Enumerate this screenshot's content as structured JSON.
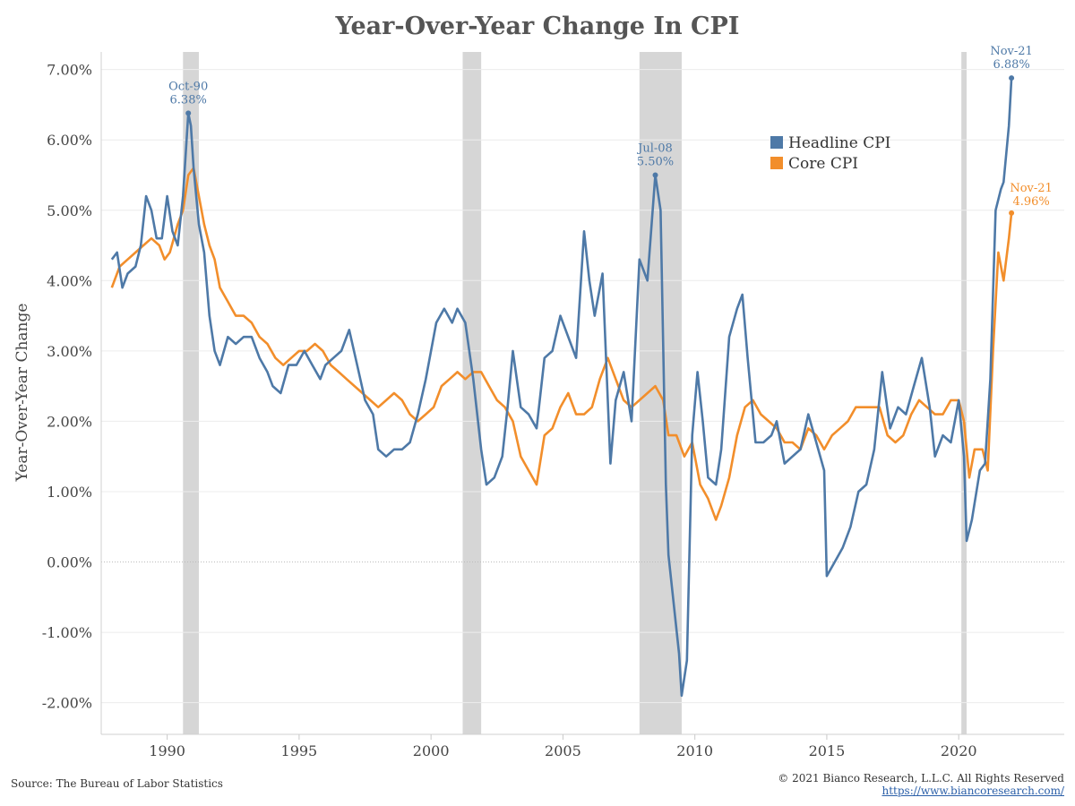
{
  "chart_data": {
    "type": "line",
    "title": "Year-Over-Year Change In CPI",
    "xlabel": "",
    "ylabel": "Year-Over-Year Change",
    "xlim": [
      1987.5,
      2024.0
    ],
    "ylim": [
      -2.45,
      7.25
    ],
    "x_ticks": [
      1990,
      1995,
      2000,
      2005,
      2010,
      2015,
      2020
    ],
    "y_ticks": [
      -2,
      -1,
      0,
      1,
      2,
      3,
      4,
      5,
      6,
      7
    ],
    "y_tick_labels": [
      "-2.00%",
      "-1.00%",
      "0.00%",
      "1.00%",
      "2.00%",
      "3.00%",
      "4.00%",
      "5.00%",
      "6.00%",
      "7.00%"
    ],
    "grid": "horizontal",
    "legend": {
      "position": "top-right",
      "entries": [
        "Headline CPI",
        "Core CPI"
      ]
    },
    "recessions": [
      [
        1990.6,
        1991.2
      ],
      [
        2001.2,
        2001.9
      ],
      [
        2007.9,
        2009.5
      ],
      [
        2020.1,
        2020.3
      ]
    ],
    "series": [
      {
        "name": "Headline CPI",
        "color": "#4e79a7",
        "points": [
          [
            1987.9,
            4.3
          ],
          [
            1988.1,
            4.4
          ],
          [
            1988.3,
            3.9
          ],
          [
            1988.5,
            4.1
          ],
          [
            1988.8,
            4.2
          ],
          [
            1989.0,
            4.5
          ],
          [
            1989.2,
            5.2
          ],
          [
            1989.4,
            5.0
          ],
          [
            1989.6,
            4.6
          ],
          [
            1989.8,
            4.6
          ],
          [
            1990.0,
            5.2
          ],
          [
            1990.2,
            4.7
          ],
          [
            1990.4,
            4.5
          ],
          [
            1990.6,
            5.2
          ],
          [
            1990.8,
            6.38
          ],
          [
            1990.9,
            6.2
          ],
          [
            1991.0,
            5.6
          ],
          [
            1991.2,
            4.8
          ],
          [
            1991.4,
            4.4
          ],
          [
            1991.6,
            3.5
          ],
          [
            1991.8,
            3.0
          ],
          [
            1992.0,
            2.8
          ],
          [
            1992.3,
            3.2
          ],
          [
            1992.6,
            3.1
          ],
          [
            1992.9,
            3.2
          ],
          [
            1993.2,
            3.2
          ],
          [
            1993.5,
            2.9
          ],
          [
            1993.8,
            2.7
          ],
          [
            1994.0,
            2.5
          ],
          [
            1994.3,
            2.4
          ],
          [
            1994.6,
            2.8
          ],
          [
            1994.9,
            2.8
          ],
          [
            1995.2,
            3.0
          ],
          [
            1995.5,
            2.8
          ],
          [
            1995.8,
            2.6
          ],
          [
            1996.0,
            2.8
          ],
          [
            1996.3,
            2.9
          ],
          [
            1996.6,
            3.0
          ],
          [
            1996.9,
            3.3
          ],
          [
            1997.2,
            2.8
          ],
          [
            1997.5,
            2.3
          ],
          [
            1997.8,
            2.1
          ],
          [
            1998.0,
            1.6
          ],
          [
            1998.3,
            1.5
          ],
          [
            1998.6,
            1.6
          ],
          [
            1998.9,
            1.6
          ],
          [
            1999.2,
            1.7
          ],
          [
            1999.5,
            2.1
          ],
          [
            1999.8,
            2.6
          ],
          [
            2000.2,
            3.4
          ],
          [
            2000.5,
            3.6
          ],
          [
            2000.8,
            3.4
          ],
          [
            2001.0,
            3.6
          ],
          [
            2001.3,
            3.4
          ],
          [
            2001.6,
            2.6
          ],
          [
            2001.9,
            1.6
          ],
          [
            2002.1,
            1.1
          ],
          [
            2002.4,
            1.2
          ],
          [
            2002.7,
            1.5
          ],
          [
            2002.9,
            2.2
          ],
          [
            2003.1,
            3.0
          ],
          [
            2003.4,
            2.2
          ],
          [
            2003.7,
            2.1
          ],
          [
            2004.0,
            1.9
          ],
          [
            2004.3,
            2.9
          ],
          [
            2004.6,
            3.0
          ],
          [
            2004.9,
            3.5
          ],
          [
            2005.2,
            3.2
          ],
          [
            2005.5,
            2.9
          ],
          [
            2005.8,
            4.7
          ],
          [
            2006.0,
            4.0
          ],
          [
            2006.2,
            3.5
          ],
          [
            2006.5,
            4.1
          ],
          [
            2006.8,
            1.4
          ],
          [
            2007.0,
            2.3
          ],
          [
            2007.3,
            2.7
          ],
          [
            2007.6,
            2.0
          ],
          [
            2007.9,
            4.3
          ],
          [
            2008.2,
            4.0
          ],
          [
            2008.5,
            5.5
          ],
          [
            2008.7,
            5.0
          ],
          [
            2008.9,
            1.1
          ],
          [
            2009.0,
            0.1
          ],
          [
            2009.2,
            -0.6
          ],
          [
            2009.4,
            -1.3
          ],
          [
            2009.5,
            -1.9
          ],
          [
            2009.7,
            -1.4
          ],
          [
            2009.9,
            1.8
          ],
          [
            2010.1,
            2.7
          ],
          [
            2010.3,
            2.0
          ],
          [
            2010.5,
            1.2
          ],
          [
            2010.8,
            1.1
          ],
          [
            2011.0,
            1.6
          ],
          [
            2011.3,
            3.2
          ],
          [
            2011.6,
            3.6
          ],
          [
            2011.8,
            3.8
          ],
          [
            2012.0,
            2.9
          ],
          [
            2012.3,
            1.7
          ],
          [
            2012.6,
            1.7
          ],
          [
            2012.9,
            1.8
          ],
          [
            2013.1,
            2.0
          ],
          [
            2013.4,
            1.4
          ],
          [
            2013.7,
            1.5
          ],
          [
            2014.0,
            1.6
          ],
          [
            2014.3,
            2.1
          ],
          [
            2014.6,
            1.7
          ],
          [
            2014.9,
            1.3
          ],
          [
            2015.0,
            -0.2
          ],
          [
            2015.3,
            0.0
          ],
          [
            2015.6,
            0.2
          ],
          [
            2015.9,
            0.5
          ],
          [
            2016.2,
            1.0
          ],
          [
            2016.5,
            1.1
          ],
          [
            2016.8,
            1.6
          ],
          [
            2017.1,
            2.7
          ],
          [
            2017.4,
            1.9
          ],
          [
            2017.7,
            2.2
          ],
          [
            2018.0,
            2.1
          ],
          [
            2018.3,
            2.5
          ],
          [
            2018.6,
            2.9
          ],
          [
            2018.9,
            2.2
          ],
          [
            2019.1,
            1.5
          ],
          [
            2019.4,
            1.8
          ],
          [
            2019.7,
            1.7
          ],
          [
            2020.0,
            2.3
          ],
          [
            2020.2,
            1.5
          ],
          [
            2020.3,
            0.3
          ],
          [
            2020.5,
            0.6
          ],
          [
            2020.8,
            1.3
          ],
          [
            2021.0,
            1.4
          ],
          [
            2021.2,
            2.6
          ],
          [
            2021.4,
            5.0
          ],
          [
            2021.6,
            5.3
          ],
          [
            2021.7,
            5.4
          ],
          [
            2021.9,
            6.2
          ],
          [
            2022.0,
            6.88
          ]
        ]
      },
      {
        "name": "Core CPI",
        "color": "#f28e2b",
        "points": [
          [
            1987.9,
            3.9
          ],
          [
            1988.2,
            4.2
          ],
          [
            1988.5,
            4.3
          ],
          [
            1988.8,
            4.4
          ],
          [
            1989.1,
            4.5
          ],
          [
            1989.4,
            4.6
          ],
          [
            1989.7,
            4.5
          ],
          [
            1989.9,
            4.3
          ],
          [
            1990.1,
            4.4
          ],
          [
            1990.4,
            4.8
          ],
          [
            1990.6,
            5.0
          ],
          [
            1990.8,
            5.5
          ],
          [
            1991.0,
            5.6
          ],
          [
            1991.2,
            5.2
          ],
          [
            1991.4,
            4.8
          ],
          [
            1991.6,
            4.5
          ],
          [
            1991.8,
            4.3
          ],
          [
            1992.0,
            3.9
          ],
          [
            1992.3,
            3.7
          ],
          [
            1992.6,
            3.5
          ],
          [
            1992.9,
            3.5
          ],
          [
            1993.2,
            3.4
          ],
          [
            1993.5,
            3.2
          ],
          [
            1993.8,
            3.1
          ],
          [
            1994.1,
            2.9
          ],
          [
            1994.4,
            2.8
          ],
          [
            1994.7,
            2.9
          ],
          [
            1995.0,
            3.0
          ],
          [
            1995.3,
            3.0
          ],
          [
            1995.6,
            3.1
          ],
          [
            1995.9,
            3.0
          ],
          [
            1996.2,
            2.8
          ],
          [
            1996.5,
            2.7
          ],
          [
            1996.8,
            2.6
          ],
          [
            1997.1,
            2.5
          ],
          [
            1997.4,
            2.4
          ],
          [
            1997.7,
            2.3
          ],
          [
            1998.0,
            2.2
          ],
          [
            1998.3,
            2.3
          ],
          [
            1998.6,
            2.4
          ],
          [
            1998.9,
            2.3
          ],
          [
            1999.2,
            2.1
          ],
          [
            1999.5,
            2.0
          ],
          [
            1999.8,
            2.1
          ],
          [
            2000.1,
            2.2
          ],
          [
            2000.4,
            2.5
          ],
          [
            2000.7,
            2.6
          ],
          [
            2001.0,
            2.7
          ],
          [
            2001.3,
            2.6
          ],
          [
            2001.6,
            2.7
          ],
          [
            2001.9,
            2.7
          ],
          [
            2002.2,
            2.5
          ],
          [
            2002.5,
            2.3
          ],
          [
            2002.8,
            2.2
          ],
          [
            2003.1,
            2.0
          ],
          [
            2003.4,
            1.5
          ],
          [
            2003.7,
            1.3
          ],
          [
            2004.0,
            1.1
          ],
          [
            2004.3,
            1.8
          ],
          [
            2004.6,
            1.9
          ],
          [
            2004.9,
            2.2
          ],
          [
            2005.2,
            2.4
          ],
          [
            2005.5,
            2.1
          ],
          [
            2005.8,
            2.1
          ],
          [
            2006.1,
            2.2
          ],
          [
            2006.4,
            2.6
          ],
          [
            2006.7,
            2.9
          ],
          [
            2007.0,
            2.6
          ],
          [
            2007.3,
            2.3
          ],
          [
            2007.6,
            2.2
          ],
          [
            2007.9,
            2.3
          ],
          [
            2008.2,
            2.4
          ],
          [
            2008.5,
            2.5
          ],
          [
            2008.8,
            2.3
          ],
          [
            2009.0,
            1.8
          ],
          [
            2009.3,
            1.8
          ],
          [
            2009.6,
            1.5
          ],
          [
            2009.9,
            1.7
          ],
          [
            2010.2,
            1.1
          ],
          [
            2010.5,
            0.9
          ],
          [
            2010.8,
            0.6
          ],
          [
            2011.0,
            0.8
          ],
          [
            2011.3,
            1.2
          ],
          [
            2011.6,
            1.8
          ],
          [
            2011.9,
            2.2
          ],
          [
            2012.2,
            2.3
          ],
          [
            2012.5,
            2.1
          ],
          [
            2012.8,
            2.0
          ],
          [
            2013.1,
            1.9
          ],
          [
            2013.4,
            1.7
          ],
          [
            2013.7,
            1.7
          ],
          [
            2014.0,
            1.6
          ],
          [
            2014.3,
            1.9
          ],
          [
            2014.6,
            1.8
          ],
          [
            2014.9,
            1.6
          ],
          [
            2015.2,
            1.8
          ],
          [
            2015.5,
            1.9
          ],
          [
            2015.8,
            2.0
          ],
          [
            2016.1,
            2.2
          ],
          [
            2016.4,
            2.2
          ],
          [
            2016.7,
            2.2
          ],
          [
            2017.0,
            2.2
          ],
          [
            2017.3,
            1.8
          ],
          [
            2017.6,
            1.7
          ],
          [
            2017.9,
            1.8
          ],
          [
            2018.2,
            2.1
          ],
          [
            2018.5,
            2.3
          ],
          [
            2018.8,
            2.2
          ],
          [
            2019.1,
            2.1
          ],
          [
            2019.4,
            2.1
          ],
          [
            2019.7,
            2.3
          ],
          [
            2020.0,
            2.3
          ],
          [
            2020.2,
            2.0
          ],
          [
            2020.4,
            1.2
          ],
          [
            2020.6,
            1.6
          ],
          [
            2020.9,
            1.6
          ],
          [
            2021.1,
            1.3
          ],
          [
            2021.3,
            3.0
          ],
          [
            2021.5,
            4.4
          ],
          [
            2021.7,
            4.0
          ],
          [
            2021.9,
            4.6
          ],
          [
            2022.0,
            4.96
          ]
        ]
      }
    ],
    "annotations": [
      {
        "date": "Oct-90",
        "value": "6.38%",
        "series": "Headline CPI",
        "x": 1990.8,
        "y": 6.38,
        "color": "#4e79a7"
      },
      {
        "date": "Jul-08",
        "value": "5.50%",
        "series": "Headline CPI",
        "x": 2008.5,
        "y": 5.5,
        "color": "#4e79a7"
      },
      {
        "date": "Nov-21",
        "value": "6.88%",
        "series": "Headline CPI",
        "x": 2022.0,
        "y": 6.88,
        "color": "#4e79a7"
      },
      {
        "date": "Nov-21",
        "value": "4.96%",
        "series": "Core CPI",
        "x": 2022.0,
        "y": 4.96,
        "color": "#f28e2b"
      }
    ]
  },
  "footer": {
    "source": "Source: The Bureau of Labor Statistics",
    "copyright": "© 2021 Bianco Research, L.L.C. All Rights Reserved",
    "url": "https://www.biancoresearch.com/"
  }
}
